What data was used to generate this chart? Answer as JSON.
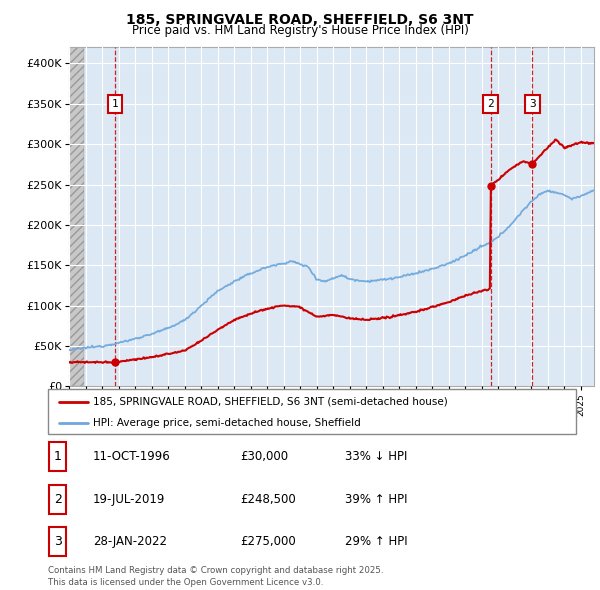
{
  "title_line1": "185, SPRINGVALE ROAD, SHEFFIELD, S6 3NT",
  "title_line2": "Price paid vs. HM Land Registry's House Price Index (HPI)",
  "yticks": [
    0,
    50000,
    100000,
    150000,
    200000,
    250000,
    300000,
    350000,
    400000
  ],
  "ytick_labels": [
    "£0",
    "£50K",
    "£100K",
    "£150K",
    "£200K",
    "£250K",
    "£300K",
    "£350K",
    "£400K"
  ],
  "hpi_color": "#6fa8dc",
  "price_color": "#cc0000",
  "bg_color": "#dce9f5",
  "hatch_color": "#c8c8c8",
  "purchases": [
    {
      "label": "1",
      "year": 1996.79,
      "price": 30000,
      "date": "11-OCT-1996",
      "pct": "33% ↓ HPI"
    },
    {
      "label": "2",
      "year": 2019.54,
      "price": 248500,
      "date": "19-JUL-2019",
      "pct": "39% ↑ HPI"
    },
    {
      "label": "3",
      "year": 2022.07,
      "price": 275000,
      "date": "28-JAN-2022",
      "pct": "29% ↑ HPI"
    }
  ],
  "legend_property_label": "185, SPRINGVALE ROAD, SHEFFIELD, S6 3NT (semi-detached house)",
  "legend_hpi_label": "HPI: Average price, semi-detached house, Sheffield",
  "footer": "Contains HM Land Registry data © Crown copyright and database right 2025.\nThis data is licensed under the Open Government Licence v3.0.",
  "xmin": 1994.0,
  "xmax": 2025.8,
  "ymin": 0,
  "ymax": 420000,
  "table_rows": [
    {
      "num": "1",
      "date": "11-OCT-1996",
      "price": "£30,000",
      "pct": "33% ↓ HPI"
    },
    {
      "num": "2",
      "date": "19-JUL-2019",
      "price": "£248,500",
      "pct": "39% ↑ HPI"
    },
    {
      "num": "3",
      "date": "28-JAN-2022",
      "price": "£275,000",
      "pct": "29% ↑ HPI"
    }
  ]
}
